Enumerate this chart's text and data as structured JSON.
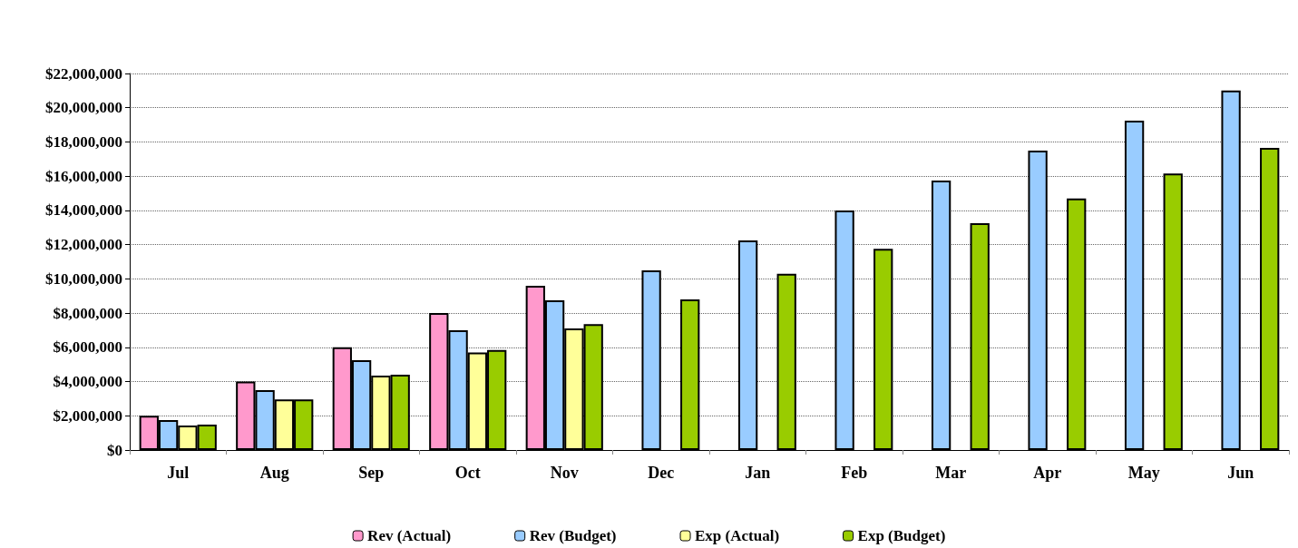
{
  "chart_data": {
    "type": "bar",
    "categories": [
      "Jul",
      "Aug",
      "Sep",
      "Oct",
      "Nov",
      "Dec",
      "Jan",
      "Feb",
      "Mar",
      "Apr",
      "May",
      "Jun"
    ],
    "series": [
      {
        "name": "Rev (Actual)",
        "color": "#ff99cc",
        "values": [
          2000000,
          4000000,
          6000000,
          8000000,
          9600000,
          null,
          null,
          null,
          null,
          null,
          null,
          null
        ]
      },
      {
        "name": "Rev (Budget)",
        "color": "#99ccff",
        "values": [
          1750000,
          3500000,
          5250000,
          7000000,
          8750000,
          10500000,
          12250000,
          14000000,
          15750000,
          17500000,
          19250000,
          21000000
        ]
      },
      {
        "name": "Exp (Actual)",
        "color": "#ffff99",
        "values": [
          1430000,
          2950000,
          4350000,
          5700000,
          7100000,
          null,
          null,
          null,
          null,
          null,
          null,
          null
        ]
      },
      {
        "name": "Exp (Budget)",
        "color": "#99cc00",
        "values": [
          1480000,
          2950000,
          4400000,
          5850000,
          7350000,
          8800000,
          10300000,
          11750000,
          13250000,
          14700000,
          16150000,
          17650000
        ]
      }
    ],
    "ylim": [
      0,
      22000000
    ],
    "yticks": [
      {
        "value": 0,
        "label": "$0"
      },
      {
        "value": 2000000,
        "label": "$2,000,000"
      },
      {
        "value": 4000000,
        "label": "$4,000,000"
      },
      {
        "value": 6000000,
        "label": "$6,000,000"
      },
      {
        "value": 8000000,
        "label": "$8,000,000"
      },
      {
        "value": 10000000,
        "label": "$10,000,000"
      },
      {
        "value": 12000000,
        "label": "$12,000,000"
      },
      {
        "value": 14000000,
        "label": "$14,000,000"
      },
      {
        "value": 16000000,
        "label": "$16,000,000"
      },
      {
        "value": 18000000,
        "label": "$18,000,000"
      },
      {
        "value": 20000000,
        "label": "$20,000,000"
      },
      {
        "value": 22000000,
        "label": "$22,000,000"
      }
    ],
    "grid": "y",
    "legend": "bottom"
  }
}
